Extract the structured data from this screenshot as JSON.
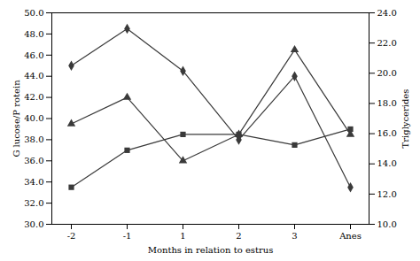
{
  "chart_data": {
    "type": "line",
    "categories": [
      "-2",
      "-1",
      "1",
      "2",
      "3",
      "Anes"
    ],
    "xlabel": "Months in relation to estrus",
    "ylabel": "G lucose/P rotein",
    "y2label": "Triglycerides",
    "series": [
      {
        "color": "#3a3a3a",
        "marker": "diamond",
        "values": [
          45.0,
          48.5,
          44.5,
          38.0,
          44.0,
          33.5
        ]
      },
      {
        "color": "#3a3a3a",
        "marker": "triangle",
        "values": [
          39.5,
          42.0,
          36.0,
          38.5,
          46.5,
          38.5
        ]
      },
      {
        "color": "#3a3a3a",
        "marker": "square",
        "values": [
          33.5,
          37.0,
          38.5,
          38.5,
          37.5,
          39.0
        ]
      }
    ],
    "ylim": [
      30.0,
      50.0
    ],
    "yticks": [
      {
        "value": 30,
        "label": "30.0"
      },
      {
        "value": 32,
        "label": "32.0"
      },
      {
        "value": 34,
        "label": "34.0"
      },
      {
        "value": 36,
        "label": "36.0"
      },
      {
        "value": 38,
        "label": "38.0"
      },
      {
        "value": 40,
        "label": "40.0"
      },
      {
        "value": 42,
        "label": "42.0"
      },
      {
        "value": 44,
        "label": "44.0"
      },
      {
        "value": 46,
        "label": "46.0"
      },
      {
        "value": 48,
        "label": "48.0"
      },
      {
        "value": 50,
        "label": "50.0"
      }
    ],
    "y2lim": [
      10.0,
      24.0
    ],
    "y2ticks": [
      {
        "value": 10,
        "label": "10.0"
      },
      {
        "value": 12,
        "label": "12.0"
      },
      {
        "value": 14,
        "label": "14.0"
      },
      {
        "value": 16,
        "label": "16.0"
      },
      {
        "value": 18,
        "label": "18.0"
      },
      {
        "value": 20,
        "label": "20.0"
      },
      {
        "value": 22,
        "label": "22.0"
      },
      {
        "value": 24,
        "label": "24.0"
      }
    ],
    "grid": false
  }
}
